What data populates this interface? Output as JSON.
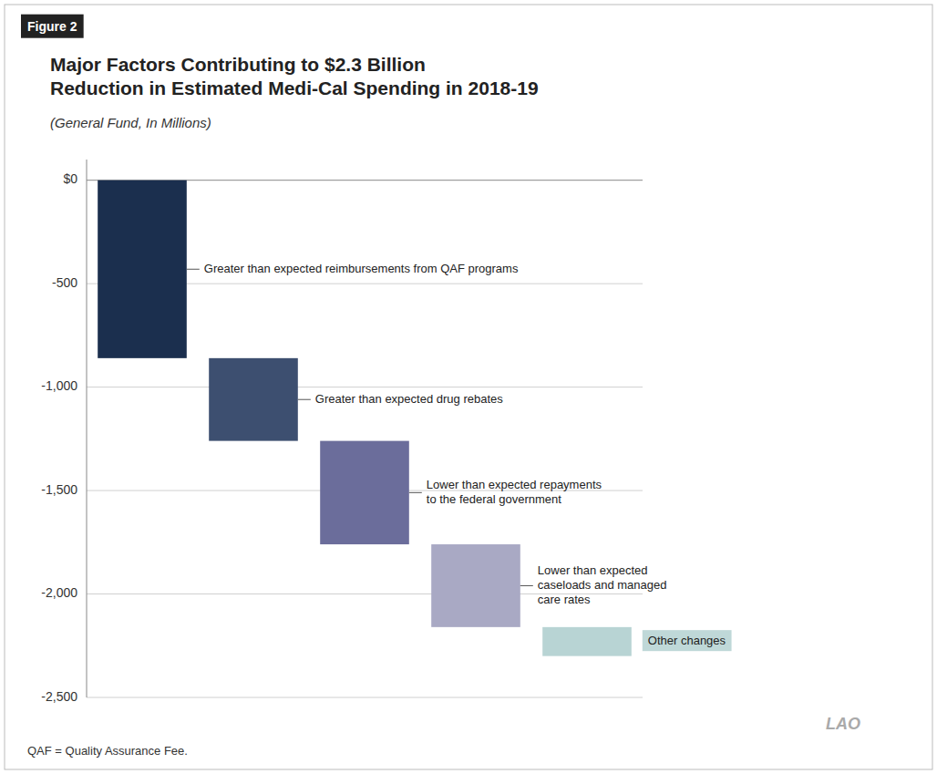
{
  "chart_data": {
    "type": "waterfall",
    "title": "Major Factors Contributing to $2.3 Billion\nReduction in Estimated Medi-Cal Spending in 2018-19",
    "subtitle": "(General Fund, In Millions)",
    "categories": [
      "Greater than expected reimbursements from QAF programs",
      "Greater than expected drug rebates",
      "Lower than expected repayments\nto the federal government",
      "Lower than expected\ncaseloads and managed\ncare rates",
      "Other changes"
    ],
    "values": [
      -860,
      -400,
      -500,
      -400,
      -140
    ],
    "colors": [
      "#1b2f4e",
      "#3d4f70",
      "#6b6d9b",
      "#a9a9c4",
      "#b8d4d4"
    ],
    "ylim": [
      -2500,
      100
    ],
    "yticks": [
      {
        "value": 0,
        "label": "$0"
      },
      -500,
      {
        "value": -1000,
        "label": "-1,000"
      },
      {
        "value": -1500,
        "label": "-1,500"
      },
      {
        "value": -2000,
        "label": "-2,000"
      },
      {
        "value": -2500,
        "label": "-2,500"
      }
    ],
    "grid": true,
    "annotations": [
      "Figure 2",
      "QAF = Quality Assurance Fee.",
      "LAO"
    ]
  }
}
